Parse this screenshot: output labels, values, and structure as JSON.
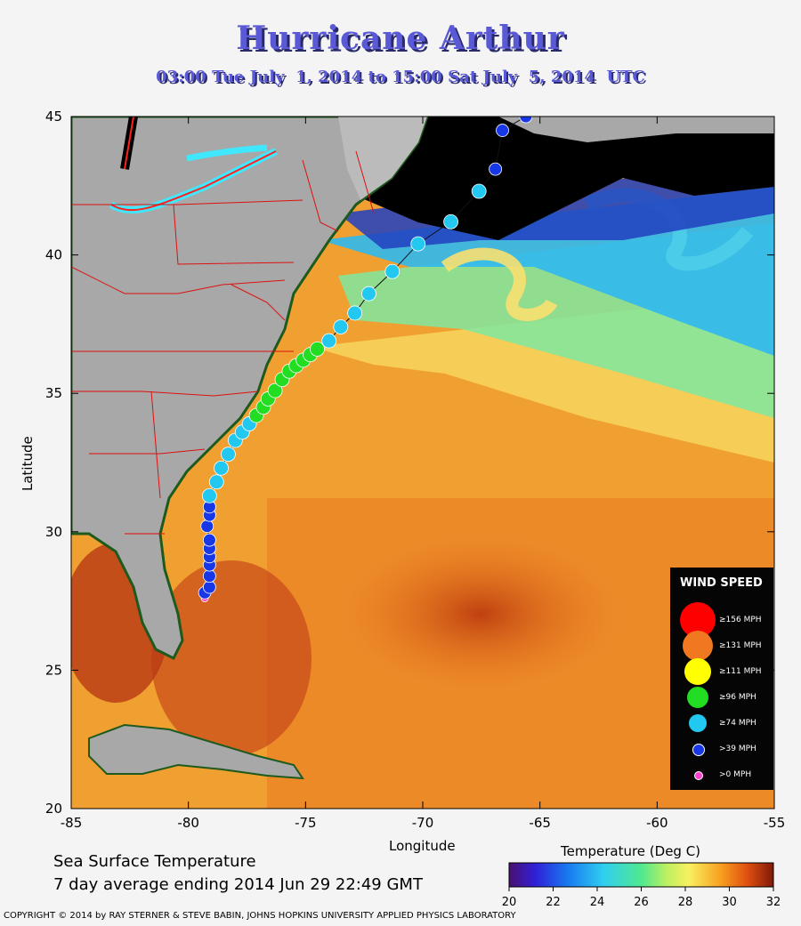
{
  "title": "Hurricane Arthur",
  "subtitle": "03:00 Tue July  1, 2014 to 15:00 Sat July  5, 2014  UTC",
  "x_axis": {
    "label": "Longitude",
    "ticks": [
      "-85",
      "-80",
      "-75",
      "-70",
      "-65",
      "-60",
      "-55"
    ],
    "range": [
      -85,
      -55
    ]
  },
  "y_axis": {
    "label": "Latitude",
    "ticks": [
      "45",
      "40",
      "35",
      "30",
      "25",
      "20"
    ],
    "range": [
      20,
      45
    ]
  },
  "sst_caption": {
    "line1": "Sea Surface Temperature",
    "line2": "7 day average ending 2014 Jun 29 22:49 GMT"
  },
  "colorbar": {
    "title": "Temperature (Deg C)",
    "ticks": [
      "20",
      "22",
      "24",
      "26",
      "28",
      "30",
      "32"
    ],
    "range": [
      20,
      32
    ]
  },
  "legend": {
    "title": "WIND SPEED",
    "items": [
      {
        "label": "≥156 MPH",
        "color": "#ff0000"
      },
      {
        "label": "≥131 MPH",
        "color": "#f07820"
      },
      {
        "label": "≥111 MPH",
        "color": "#ffff00"
      },
      {
        "label": "≥96 MPH",
        "color": "#22dd22"
      },
      {
        "label": "≥74 MPH",
        "color": "#22c8f0"
      },
      {
        "label": ">39 MPH",
        "color": "#1838e8"
      },
      {
        "label": ">0 MPH",
        "color": "#ff44cc"
      }
    ]
  },
  "copyright": "COPYRIGHT © 2014 by RAY STERNER & STEVE BABIN, JOHNS HOPKINS UNIVERSITY APPLIED PHYSICS LABORATORY",
  "track": [
    {
      "lon": -79.3,
      "lat": 27.6,
      "cat": ">0"
    },
    {
      "lon": -79.3,
      "lat": 27.8,
      "cat": ">39"
    },
    {
      "lon": -79.1,
      "lat": 28.0,
      "cat": ">39"
    },
    {
      "lon": -79.1,
      "lat": 28.4,
      "cat": ">39"
    },
    {
      "lon": -79.1,
      "lat": 28.8,
      "cat": ">39"
    },
    {
      "lon": -79.1,
      "lat": 29.1,
      "cat": ">39"
    },
    {
      "lon": -79.1,
      "lat": 29.4,
      "cat": ">39"
    },
    {
      "lon": -79.1,
      "lat": 29.7,
      "cat": ">39"
    },
    {
      "lon": -79.2,
      "lat": 30.2,
      "cat": ">39"
    },
    {
      "lon": -79.1,
      "lat": 30.6,
      "cat": ">39"
    },
    {
      "lon": -79.1,
      "lat": 30.9,
      "cat": ">39"
    },
    {
      "lon": -79.1,
      "lat": 31.3,
      "cat": "74"
    },
    {
      "lon": -78.8,
      "lat": 31.8,
      "cat": "74"
    },
    {
      "lon": -78.6,
      "lat": 32.3,
      "cat": "74"
    },
    {
      "lon": -78.3,
      "lat": 32.8,
      "cat": "74"
    },
    {
      "lon": -78.0,
      "lat": 33.3,
      "cat": "74"
    },
    {
      "lon": -77.7,
      "lat": 33.6,
      "cat": "74"
    },
    {
      "lon": -77.4,
      "lat": 33.9,
      "cat": "74"
    },
    {
      "lon": -77.1,
      "lat": 34.2,
      "cat": "96"
    },
    {
      "lon": -76.8,
      "lat": 34.5,
      "cat": "96"
    },
    {
      "lon": -76.6,
      "lat": 34.8,
      "cat": "96"
    },
    {
      "lon": -76.3,
      "lat": 35.1,
      "cat": "96"
    },
    {
      "lon": -76.0,
      "lat": 35.5,
      "cat": "96"
    },
    {
      "lon": -75.7,
      "lat": 35.8,
      "cat": "96"
    },
    {
      "lon": -75.4,
      "lat": 36.0,
      "cat": "96"
    },
    {
      "lon": -75.1,
      "lat": 36.2,
      "cat": "96"
    },
    {
      "lon": -74.8,
      "lat": 36.4,
      "cat": "96"
    },
    {
      "lon": -74.5,
      "lat": 36.6,
      "cat": "96"
    },
    {
      "lon": -74.0,
      "lat": 36.9,
      "cat": "74"
    },
    {
      "lon": -73.5,
      "lat": 37.4,
      "cat": "74"
    },
    {
      "lon": -72.9,
      "lat": 37.9,
      "cat": "74"
    },
    {
      "lon": -72.3,
      "lat": 38.6,
      "cat": "74"
    },
    {
      "lon": -71.3,
      "lat": 39.4,
      "cat": "74"
    },
    {
      "lon": -70.2,
      "lat": 40.4,
      "cat": "74"
    },
    {
      "lon": -68.8,
      "lat": 41.2,
      "cat": "74"
    },
    {
      "lon": -67.6,
      "lat": 42.3,
      "cat": "74"
    },
    {
      "lon": -66.9,
      "lat": 43.1,
      "cat": ">39"
    },
    {
      "lon": -66.6,
      "lat": 44.5,
      "cat": ">39"
    },
    {
      "lon": -65.6,
      "lat": 45.0,
      "cat": ">39"
    }
  ]
}
